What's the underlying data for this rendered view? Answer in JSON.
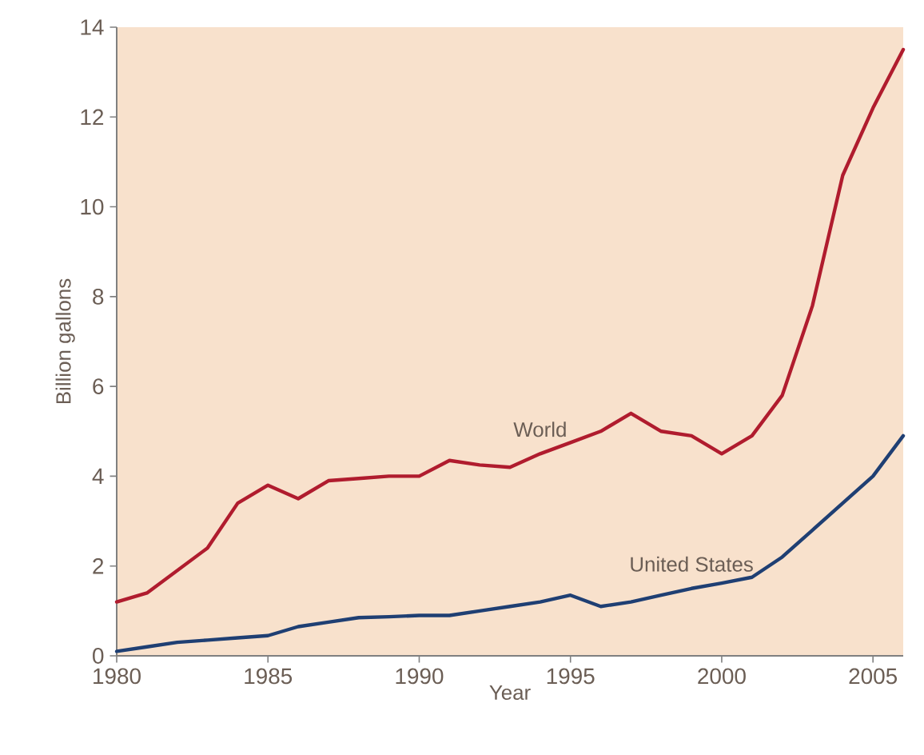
{
  "chart_data": {
    "type": "line",
    "xlabel": "Year",
    "ylabel": "Billion gallons",
    "x": [
      1980,
      1981,
      1982,
      1983,
      1984,
      1985,
      1986,
      1987,
      1988,
      1989,
      1990,
      1991,
      1992,
      1993,
      1994,
      1995,
      1996,
      1997,
      1998,
      1999,
      2000,
      2001,
      2002,
      2003,
      2004,
      2005,
      2006
    ],
    "series": [
      {
        "name": "World",
        "color": "#b01c2e",
        "values": [
          1.2,
          1.4,
          1.9,
          2.4,
          3.4,
          3.8,
          3.5,
          3.9,
          3.95,
          4.0,
          4.0,
          4.35,
          4.25,
          4.2,
          4.5,
          4.75,
          5.0,
          5.4,
          5.0,
          4.9,
          4.5,
          4.9,
          5.8,
          7.8,
          10.7,
          12.2,
          13.5
        ]
      },
      {
        "name": "United States",
        "color": "#1f3f73",
        "values": [
          0.1,
          0.2,
          0.3,
          0.35,
          0.4,
          0.45,
          0.65,
          0.75,
          0.85,
          0.87,
          0.9,
          0.9,
          1.0,
          1.1,
          1.2,
          1.35,
          1.1,
          1.2,
          1.35,
          1.5,
          1.62,
          1.75,
          2.2,
          2.8,
          3.4,
          4.0,
          4.9
        ]
      }
    ],
    "xlim": [
      1980,
      2006
    ],
    "ylim": [
      0,
      14
    ],
    "xticks": [
      1980,
      1985,
      1990,
      1995,
      2000,
      2005
    ],
    "yticks": [
      0,
      2,
      4,
      6,
      8,
      10,
      12,
      14
    ],
    "grid": false,
    "legend": false,
    "marker": "none",
    "line_style": "solid"
  }
}
